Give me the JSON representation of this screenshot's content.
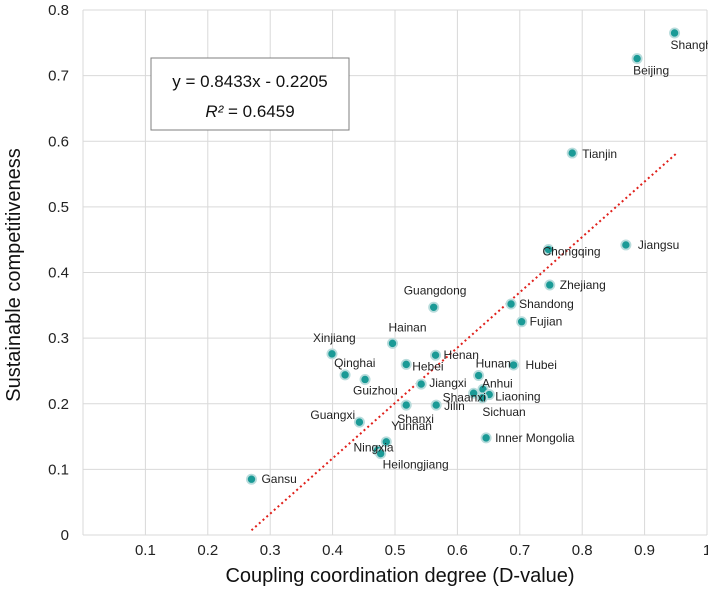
{
  "chart_data": {
    "type": "scatter",
    "title": "",
    "xlabel": "Coupling coordination degree (D-value)",
    "ylabel": "Sustainable competitiveness",
    "xlim": [
      0,
      1
    ],
    "ylim": [
      0,
      0.8
    ],
    "grid": true,
    "x_ticks": [
      "0.1",
      "0.2",
      "0.3",
      "0.4",
      "0.5",
      "0.6",
      "0.7",
      "0.8",
      "0.9",
      "1"
    ],
    "y_ticks": [
      "0",
      "0.1",
      "0.2",
      "0.3",
      "0.4",
      "0.5",
      "0.6",
      "0.7",
      "0.8"
    ],
    "marker_color": "#1a9a96",
    "trendline": {
      "type": "linear",
      "slope": 0.8433,
      "intercept": -0.2205,
      "x_range": [
        0.27,
        0.95
      ],
      "color": "#e0201b",
      "style": "dotted"
    },
    "equation_line1": "y = 0.8433x - 0.2205",
    "equation_r2_label": "R²",
    "equation_r2_value": " = 0.6459",
    "points": [
      {
        "name": "Shanghai",
        "x": 0.948,
        "y": 0.765
      },
      {
        "name": "Beijing",
        "x": 0.888,
        "y": 0.726
      },
      {
        "name": "Tianjin",
        "x": 0.784,
        "y": 0.582
      },
      {
        "name": "Jiangsu",
        "x": 0.87,
        "y": 0.442
      },
      {
        "name": "Chongqing",
        "x": 0.746,
        "y": 0.435
      },
      {
        "name": "Zhejiang",
        "x": 0.748,
        "y": 0.381
      },
      {
        "name": "Shandong",
        "x": 0.686,
        "y": 0.352
      },
      {
        "name": "Fujian",
        "x": 0.703,
        "y": 0.325
      },
      {
        "name": "Guangdong",
        "x": 0.562,
        "y": 0.347
      },
      {
        "name": "Hainan",
        "x": 0.496,
        "y": 0.292
      },
      {
        "name": "Xinjiang",
        "x": 0.399,
        "y": 0.276
      },
      {
        "name": "Henan",
        "x": 0.565,
        "y": 0.274
      },
      {
        "name": "Hebei",
        "x": 0.518,
        "y": 0.26
      },
      {
        "name": "Hubei",
        "x": 0.69,
        "y": 0.259
      },
      {
        "name": "Hunan",
        "x": 0.634,
        "y": 0.243
      },
      {
        "name": "Qinghai",
        "x": 0.42,
        "y": 0.244
      },
      {
        "name": "Guizhou",
        "x": 0.452,
        "y": 0.237
      },
      {
        "name": "Jiangxi",
        "x": 0.542,
        "y": 0.23
      },
      {
        "name": "Anhui",
        "x": 0.641,
        "y": 0.222
      },
      {
        "name": "Shaanxi",
        "x": 0.626,
        "y": 0.216
      },
      {
        "name": "Liaoning",
        "x": 0.651,
        "y": 0.214
      },
      {
        "name": "Sichuan",
        "x": 0.64,
        "y": 0.209
      },
      {
        "name": "Jilin",
        "x": 0.566,
        "y": 0.198
      },
      {
        "name": "Shanxi",
        "x": 0.518,
        "y": 0.198
      },
      {
        "name": "Guangxi",
        "x": 0.443,
        "y": 0.172
      },
      {
        "name": "Inner Mongolia",
        "x": 0.646,
        "y": 0.148
      },
      {
        "name": "Yunnan",
        "x": 0.486,
        "y": 0.142
      },
      {
        "name": "Ningxia",
        "x": 0.472,
        "y": 0.129
      },
      {
        "name": "Heilongjiang",
        "x": 0.477,
        "y": 0.124
      },
      {
        "name": "Gansu",
        "x": 0.27,
        "y": 0.085
      }
    ]
  }
}
